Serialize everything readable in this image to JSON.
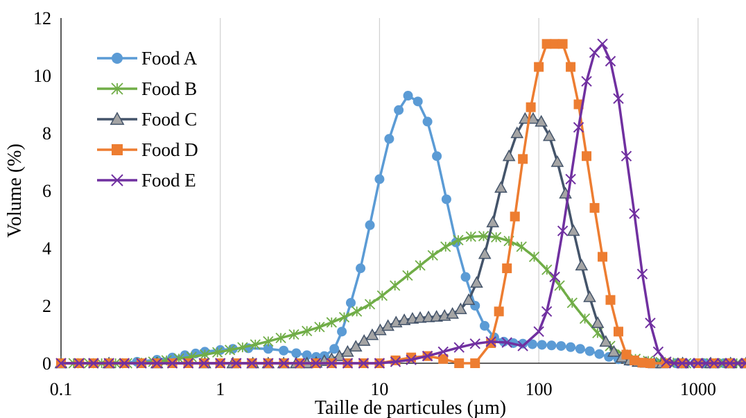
{
  "chart_data": {
    "type": "line",
    "x_scale": "log",
    "xlabel": "Taille  de particules (µm)",
    "ylabel": "Volume (%)",
    "xlim": [
      0.1,
      2000
    ],
    "ylim": [
      0,
      12
    ],
    "x_ticks": [
      0.1,
      1,
      10,
      100,
      1000
    ],
    "x_tick_labels": [
      "0.1",
      "1",
      "10",
      "100",
      "1000"
    ],
    "y_ticks": [
      0,
      2,
      4,
      6,
      8,
      10,
      12
    ],
    "y_tick_labels": [
      "0",
      "2",
      "4",
      "6",
      "8",
      "10",
      "12"
    ],
    "grid": {
      "vertical": true,
      "horizontal": false
    },
    "legend_position": "top-left",
    "series": [
      {
        "name": "Food A",
        "color": "#5b9bd5",
        "marker": "circle",
        "x": [
          0.1,
          0.2,
          0.3,
          0.4,
          0.5,
          0.6,
          0.7,
          0.8,
          1.0,
          1.2,
          1.5,
          2.0,
          2.5,
          3.0,
          3.5,
          4.0,
          4.5,
          5.2,
          5.8,
          6.6,
          7.6,
          8.7,
          10.0,
          11.5,
          13.2,
          15.1,
          17.4,
          20.0,
          22.9,
          26.3,
          30.2,
          34.7,
          39.8,
          45.7,
          52.5,
          60.3,
          69.2,
          79.4,
          91.2,
          104.7,
          120.2,
          138.0,
          158.5,
          182.0,
          208.9,
          239.9,
          275.4,
          316.2,
          363.1,
          416.9,
          478.6,
          549.5,
          630.9,
          724.4,
          831.8,
          955.0,
          1096.5,
          1258.9,
          1445.4,
          1659.6,
          1905.5
        ],
        "y": [
          0,
          0,
          0.05,
          0.12,
          0.2,
          0.28,
          0.34,
          0.4,
          0.46,
          0.5,
          0.52,
          0.5,
          0.44,
          0.35,
          0.28,
          0.22,
          0.25,
          0.5,
          1.1,
          2.1,
          3.3,
          4.8,
          6.4,
          7.8,
          8.8,
          9.3,
          9.1,
          8.4,
          7.2,
          5.7,
          4.2,
          3.0,
          2.0,
          1.3,
          0.9,
          0.75,
          0.7,
          0.68,
          0.66,
          0.64,
          0.62,
          0.6,
          0.56,
          0.5,
          0.42,
          0.32,
          0.22,
          0.14,
          0.08,
          0.04,
          0.02,
          0.01,
          0,
          0,
          0,
          0,
          0,
          0,
          0,
          0,
          0
        ]
      },
      {
        "name": "Food B",
        "color": "#70ad47",
        "marker": "star",
        "x": [
          0.1,
          0.12,
          0.15,
          0.18,
          0.22,
          0.26,
          0.32,
          0.38,
          0.46,
          0.55,
          0.66,
          0.8,
          0.96,
          1.15,
          1.38,
          1.66,
          2.0,
          2.4,
          2.9,
          3.5,
          4.2,
          5.0,
          6.0,
          7.2,
          8.7,
          10.4,
          12.5,
          15.0,
          18.0,
          21.6,
          26.0,
          31.2,
          37.5,
          45.0,
          54.0,
          64.9,
          77.9,
          93.6,
          112.4,
          135.0,
          162.1,
          194.6,
          233.7,
          280.6,
          337.0,
          404.6,
          485.9,
          583.4,
          700.6,
          841.2,
          1010.0,
          1213.0,
          1456.0,
          1749.0,
          2000.0
        ],
        "y": [
          0,
          0,
          0,
          0,
          0,
          0,
          0.02,
          0.05,
          0.1,
          0.16,
          0.22,
          0.3,
          0.38,
          0.46,
          0.55,
          0.65,
          0.76,
          0.88,
          1.0,
          1.12,
          1.26,
          1.42,
          1.6,
          1.8,
          2.05,
          2.35,
          2.7,
          3.05,
          3.4,
          3.75,
          4.05,
          4.28,
          4.4,
          4.42,
          4.38,
          4.25,
          4.05,
          3.7,
          3.25,
          2.7,
          2.1,
          1.55,
          1.05,
          0.6,
          0.3,
          0.15,
          0.08,
          0.04,
          0.02,
          0,
          0,
          0,
          0,
          0,
          0
        ]
      },
      {
        "name": "Food C",
        "color": "#44546a",
        "marker": "triangle",
        "x": [
          0.1,
          0.2,
          0.4,
          0.8,
          1.2,
          1.6,
          2.0,
          2.5,
          3.0,
          3.5,
          4.0,
          4.5,
          5.0,
          5.6,
          6.3,
          7.1,
          8.0,
          9.0,
          10.1,
          11.3,
          12.7,
          14.3,
          16.1,
          18.0,
          20.3,
          22.8,
          25.6,
          28.7,
          32.3,
          36.3,
          40.7,
          45.8,
          51.4,
          57.8,
          65.0,
          73.0,
          82.0,
          92.1,
          103.6,
          116.4,
          130.8,
          147.0,
          165.2,
          185.7,
          208.6,
          234.4,
          263.4,
          296.0,
          332.6,
          373.8,
          420.0,
          472.0,
          530.4,
          596.0,
          800.0,
          1200.0,
          1600.0,
          2000.0
        ],
        "y": [
          0,
          0,
          0,
          0,
          0,
          0,
          0,
          0,
          0,
          0,
          0.02,
          0.08,
          0.15,
          0.25,
          0.4,
          0.58,
          0.78,
          0.98,
          1.15,
          1.3,
          1.42,
          1.5,
          1.55,
          1.58,
          1.6,
          1.62,
          1.65,
          1.72,
          1.88,
          2.2,
          2.8,
          3.8,
          4.9,
          6.1,
          7.2,
          8.0,
          8.5,
          8.5,
          8.4,
          7.9,
          7.0,
          5.9,
          4.6,
          3.4,
          2.3,
          1.4,
          0.75,
          0.4,
          0.2,
          0.1,
          0.05,
          0.02,
          0,
          0,
          0,
          0,
          0,
          0
        ]
      },
      {
        "name": "Food D",
        "color": "#ed7d31",
        "marker": "square",
        "x": [
          0.1,
          0.13,
          0.16,
          0.2,
          0.25,
          0.32,
          0.4,
          0.5,
          0.63,
          0.79,
          1.0,
          1.26,
          1.58,
          2.0,
          2.51,
          3.16,
          3.98,
          5.01,
          6.31,
          7.94,
          10.0,
          12.6,
          15.8,
          20.0,
          25.1,
          31.6,
          39.8,
          50.1,
          56.2,
          63.1,
          70.8,
          79.4,
          89.1,
          100.0,
          112.2,
          125.9,
          141.3,
          158.5,
          177.8,
          199.5,
          223.9,
          251.2,
          281.8,
          316.2,
          354.8,
          398.1,
          446.7,
          501.2,
          630.9,
          794.3,
          1000.0,
          1258.9,
          1584.9,
          1995.3
        ],
        "y": [
          0,
          0,
          0,
          0,
          0,
          0,
          0,
          0,
          0,
          0,
          0,
          0,
          0,
          0,
          0,
          0,
          0,
          0,
          0,
          0,
          0,
          0.1,
          0.2,
          0.25,
          0.15,
          0,
          0,
          0.7,
          1.8,
          3.3,
          5.1,
          7.1,
          8.9,
          10.3,
          11.1,
          11.1,
          11.1,
          10.3,
          9.0,
          7.2,
          5.4,
          3.7,
          2.2,
          1.1,
          0.3,
          0.1,
          0.02,
          0,
          0,
          0,
          0,
          0,
          0,
          0
        ]
      },
      {
        "name": "Food E",
        "color": "#7030a0",
        "marker": "x",
        "x": [
          0.1,
          0.13,
          0.16,
          0.2,
          0.25,
          0.32,
          0.4,
          0.5,
          0.63,
          0.79,
          1.0,
          1.26,
          1.58,
          2.0,
          2.51,
          3.16,
          3.98,
          5.01,
          6.31,
          7.94,
          10.0,
          12.6,
          15.8,
          20.0,
          25.1,
          31.6,
          39.8,
          50.1,
          63.1,
          79.4,
          100.0,
          112.2,
          125.9,
          141.3,
          158.5,
          177.8,
          199.5,
          223.9,
          251.2,
          281.8,
          316.2,
          354.8,
          398.1,
          446.7,
          501.2,
          562.3,
          631.0,
          707.9,
          794.3,
          891.3,
          1000.0,
          1122.0,
          1258.9,
          1412.5,
          1584.9,
          1778.3,
          1995.3
        ],
        "y": [
          0,
          0,
          0,
          0,
          0,
          0,
          0,
          0,
          0,
          0,
          0,
          0,
          0,
          0,
          0,
          0,
          0,
          0,
          0,
          0,
          0,
          0.05,
          0.12,
          0.25,
          0.4,
          0.55,
          0.68,
          0.75,
          0.72,
          0.6,
          1.1,
          1.8,
          3.0,
          4.6,
          6.4,
          8.2,
          9.8,
          10.8,
          11.1,
          10.5,
          9.2,
          7.2,
          5.2,
          3.1,
          1.4,
          0.4,
          0.05,
          0,
          0,
          0,
          0,
          0,
          0,
          0,
          0,
          0,
          0
        ]
      }
    ]
  }
}
